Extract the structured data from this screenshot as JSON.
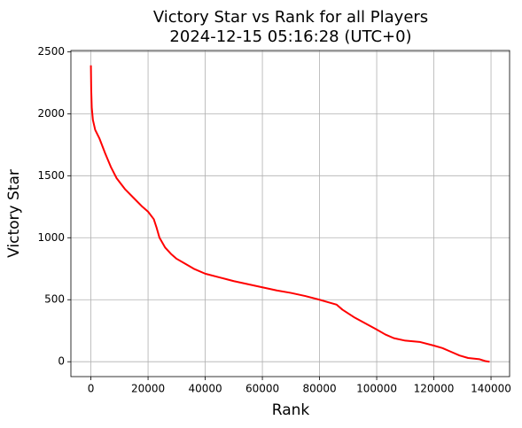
{
  "chart_data": {
    "type": "line",
    "title": "Victory Star vs Rank for all Players",
    "subtitle": "2024-12-15 05:16:28 (UTC+0)",
    "x_label": "Rank",
    "y_label": "Victory Star",
    "x": [
      0,
      100,
      300,
      700,
      1500,
      3000,
      5000,
      7000,
      9000,
      12000,
      15000,
      18000,
      20000,
      22000,
      23000,
      24000,
      26000,
      28000,
      30000,
      33000,
      36000,
      40000,
      45000,
      50000,
      55000,
      60000,
      65000,
      70000,
      75000,
      80000,
      83000,
      86000,
      88000,
      92000,
      96000,
      100000,
      103000,
      106000,
      110000,
      115000,
      120000,
      123000,
      126000,
      129000,
      132000,
      136000,
      138000,
      139500
    ],
    "series": [
      {
        "name": "Victory Star",
        "color": "#ff0000",
        "values": [
          2390,
          2200,
          2050,
          1950,
          1870,
          1800,
          1680,
          1570,
          1480,
          1390,
          1320,
          1250,
          1210,
          1150,
          1080,
          1000,
          920,
          870,
          830,
          790,
          750,
          710,
          680,
          650,
          625,
          600,
          575,
          555,
          530,
          500,
          480,
          460,
          420,
          360,
          310,
          260,
          220,
          190,
          170,
          160,
          130,
          110,
          80,
          50,
          30,
          20,
          5,
          0
        ]
      }
    ],
    "xlim": [
      -7000,
      146500
    ],
    "ylim": [
      -120,
      2510
    ],
    "xticks": [
      0,
      20000,
      40000,
      60000,
      80000,
      100000,
      120000,
      140000
    ],
    "yticks": [
      0,
      500,
      1000,
      1500,
      2000,
      2500
    ],
    "grid": true
  }
}
